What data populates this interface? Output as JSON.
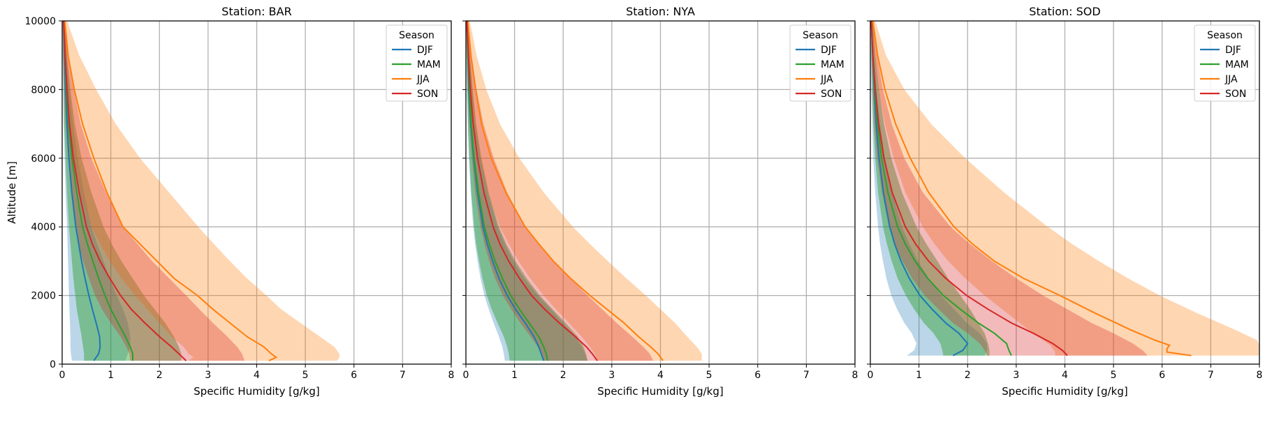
{
  "chart_data": [
    {
      "type": "area",
      "title": "Station: BAR",
      "xlabel": "Specific Humidity [g/kg]",
      "ylabel": "Altitude [m]",
      "xlim": [
        0,
        8
      ],
      "ylim": [
        0,
        10000
      ],
      "xticks": [
        "0",
        "1",
        "2",
        "3",
        "4",
        "5",
        "6",
        "7",
        "8"
      ],
      "yticks": [
        "0",
        "2000",
        "4000",
        "6000",
        "8000",
        "10000"
      ],
      "grid": true,
      "legend": {
        "title": "Season",
        "position": "top-right"
      },
      "series": [
        {
          "name": "DJF",
          "color": "#1f77b4",
          "altitude": [
            100,
            300,
            500,
            800,
            1200,
            1600,
            2000,
            2500,
            3000,
            3500,
            4000,
            5000,
            6000,
            7000,
            8000,
            9000,
            10000
          ],
          "mean": [
            0.65,
            0.75,
            0.78,
            0.77,
            0.7,
            0.62,
            0.55,
            0.47,
            0.4,
            0.34,
            0.28,
            0.2,
            0.14,
            0.1,
            0.07,
            0.05,
            0.03
          ],
          "lower": [
            0.2,
            0.18,
            0.17,
            0.17,
            0.16,
            0.15,
            0.14,
            0.13,
            0.12,
            0.11,
            0.1,
            0.07,
            0.05,
            0.03,
            0.02,
            0.01,
            0.01
          ],
          "upper": [
            1.3,
            1.35,
            1.4,
            1.4,
            1.35,
            1.25,
            1.12,
            0.98,
            0.85,
            0.72,
            0.6,
            0.45,
            0.32,
            0.22,
            0.15,
            0.09,
            0.05
          ]
        },
        {
          "name": "MAM",
          "color": "#2ca02c",
          "altitude": [
            100,
            300,
            500,
            800,
            1200,
            1600,
            2000,
            2500,
            3000,
            3500,
            4000,
            5000,
            6000,
            7000,
            8000,
            9000,
            10000
          ],
          "mean": [
            1.45,
            1.45,
            1.4,
            1.3,
            1.15,
            1.0,
            0.88,
            0.75,
            0.63,
            0.52,
            0.42,
            0.3,
            0.2,
            0.13,
            0.09,
            0.06,
            0.03
          ],
          "lower": [
            0.45,
            0.45,
            0.43,
            0.4,
            0.35,
            0.3,
            0.27,
            0.23,
            0.2,
            0.17,
            0.14,
            0.1,
            0.07,
            0.04,
            0.03,
            0.02,
            0.01
          ],
          "upper": [
            2.45,
            2.45,
            2.4,
            2.3,
            2.12,
            1.9,
            1.68,
            1.45,
            1.22,
            1.02,
            0.85,
            0.6,
            0.4,
            0.26,
            0.17,
            0.1,
            0.05
          ]
        },
        {
          "name": "JJA",
          "color": "#ff7f0e",
          "altitude": [
            100,
            200,
            300,
            500,
            800,
            1200,
            1600,
            2000,
            2500,
            3000,
            3500,
            4000,
            5000,
            6000,
            7000,
            8000,
            9000,
            10000
          ],
          "mean": [
            4.25,
            4.4,
            4.3,
            4.15,
            3.8,
            3.45,
            3.1,
            2.78,
            2.3,
            1.95,
            1.6,
            1.25,
            0.92,
            0.65,
            0.42,
            0.25,
            0.12,
            0.05
          ],
          "lower": [
            2.6,
            2.7,
            2.6,
            2.5,
            2.25,
            2.0,
            1.75,
            1.5,
            1.22,
            0.98,
            0.78,
            0.6,
            0.38,
            0.25,
            0.15,
            0.08,
            0.04,
            0.02
          ],
          "upper": [
            5.65,
            5.7,
            5.7,
            5.6,
            5.3,
            4.9,
            4.5,
            4.2,
            3.8,
            3.45,
            3.12,
            2.8,
            2.2,
            1.6,
            1.1,
            0.7,
            0.35,
            0.1
          ]
        },
        {
          "name": "SON",
          "color": "#d62728",
          "altitude": [
            100,
            300,
            500,
            800,
            1200,
            1600,
            2000,
            2500,
            3000,
            3500,
            4000,
            5000,
            6000,
            7000,
            8000,
            9000,
            10000
          ],
          "mean": [
            2.55,
            2.4,
            2.25,
            2.0,
            1.7,
            1.42,
            1.2,
            0.98,
            0.78,
            0.62,
            0.5,
            0.35,
            0.23,
            0.15,
            0.1,
            0.06,
            0.03
          ],
          "lower": [
            1.4,
            1.38,
            1.32,
            1.2,
            1.0,
            0.82,
            0.68,
            0.55,
            0.43,
            0.34,
            0.27,
            0.18,
            0.12,
            0.07,
            0.04,
            0.02,
            0.01
          ],
          "upper": [
            3.75,
            3.7,
            3.6,
            3.4,
            3.1,
            2.82,
            2.55,
            2.2,
            1.85,
            1.55,
            1.25,
            0.9,
            0.6,
            0.38,
            0.24,
            0.14,
            0.07
          ]
        }
      ]
    },
    {
      "type": "area",
      "title": "Station: NYA",
      "xlabel": "Specific Humidity [g/kg]",
      "ylabel": "",
      "xlim": [
        0,
        8
      ],
      "ylim": [
        0,
        10000
      ],
      "xticks": [
        "0",
        "1",
        "2",
        "3",
        "4",
        "5",
        "6",
        "7",
        "8"
      ],
      "yticks": [
        "",
        "",
        "",
        "",
        "",
        ""
      ],
      "grid": true,
      "legend": {
        "title": "Season",
        "position": "top-right"
      },
      "series": [
        {
          "name": "DJF",
          "color": "#1f77b4",
          "altitude": [
            100,
            300,
            500,
            800,
            1200,
            1600,
            2000,
            2500,
            3000,
            3500,
            4000,
            5000,
            6000,
            7000,
            8000,
            9000,
            10000
          ],
          "mean": [
            1.6,
            1.55,
            1.5,
            1.4,
            1.22,
            1.02,
            0.85,
            0.68,
            0.55,
            0.44,
            0.35,
            0.24,
            0.16,
            0.1,
            0.06,
            0.04,
            0.02
          ],
          "lower": [
            0.8,
            0.78,
            0.75,
            0.68,
            0.57,
            0.47,
            0.38,
            0.3,
            0.24,
            0.19,
            0.15,
            0.1,
            0.06,
            0.04,
            0.02,
            0.01,
            0.01
          ],
          "upper": [
            2.5,
            2.45,
            2.38,
            2.25,
            2.0,
            1.75,
            1.48,
            1.2,
            0.98,
            0.8,
            0.65,
            0.45,
            0.3,
            0.2,
            0.13,
            0.08,
            0.04
          ]
        },
        {
          "name": "MAM",
          "color": "#2ca02c",
          "altitude": [
            100,
            300,
            500,
            800,
            1200,
            1600,
            2000,
            2500,
            3000,
            3500,
            4000,
            5000,
            6000,
            7000,
            8000,
            9000,
            10000
          ],
          "mean": [
            1.68,
            1.65,
            1.6,
            1.5,
            1.3,
            1.1,
            0.92,
            0.75,
            0.6,
            0.48,
            0.38,
            0.26,
            0.17,
            0.11,
            0.07,
            0.04,
            0.02
          ],
          "lower": [
            0.9,
            0.88,
            0.85,
            0.78,
            0.65,
            0.53,
            0.43,
            0.34,
            0.27,
            0.21,
            0.17,
            0.11,
            0.07,
            0.04,
            0.03,
            0.02,
            0.01
          ],
          "upper": [
            2.5,
            2.47,
            2.42,
            2.3,
            2.05,
            1.78,
            1.52,
            1.25,
            1.02,
            0.83,
            0.68,
            0.47,
            0.32,
            0.21,
            0.14,
            0.08,
            0.04
          ]
        },
        {
          "name": "JJA",
          "color": "#ff7f0e",
          "altitude": [
            100,
            300,
            500,
            800,
            1200,
            1600,
            2000,
            2500,
            3000,
            3500,
            4000,
            5000,
            6000,
            7000,
            8000,
            9000,
            10000
          ],
          "mean": [
            4.05,
            3.95,
            3.8,
            3.55,
            3.25,
            2.9,
            2.55,
            2.15,
            1.8,
            1.5,
            1.22,
            0.82,
            0.52,
            0.32,
            0.2,
            0.1,
            0.04
          ],
          "lower": [
            2.7,
            2.65,
            2.55,
            2.38,
            2.12,
            1.85,
            1.6,
            1.32,
            1.08,
            0.88,
            0.7,
            0.45,
            0.28,
            0.17,
            0.1,
            0.05,
            0.02
          ],
          "upper": [
            4.85,
            4.85,
            4.75,
            4.55,
            4.3,
            4.0,
            3.7,
            3.3,
            2.92,
            2.55,
            2.2,
            1.6,
            1.1,
            0.7,
            0.42,
            0.22,
            0.08
          ]
        },
        {
          "name": "SON",
          "color": "#d62728",
          "altitude": [
            100,
            300,
            500,
            800,
            1200,
            1600,
            2000,
            2500,
            3000,
            3500,
            4000,
            5000,
            6000,
            7000,
            8000,
            9000,
            10000
          ],
          "mean": [
            2.7,
            2.6,
            2.48,
            2.25,
            1.92,
            1.62,
            1.35,
            1.1,
            0.88,
            0.7,
            0.56,
            0.37,
            0.24,
            0.15,
            0.09,
            0.05,
            0.02
          ],
          "lower": [
            1.6,
            1.55,
            1.48,
            1.33,
            1.12,
            0.93,
            0.76,
            0.6,
            0.48,
            0.38,
            0.3,
            0.19,
            0.12,
            0.07,
            0.04,
            0.02,
            0.01
          ],
          "upper": [
            3.85,
            3.78,
            3.65,
            3.42,
            3.1,
            2.8,
            2.5,
            2.15,
            1.8,
            1.5,
            1.22,
            0.85,
            0.57,
            0.36,
            0.22,
            0.12,
            0.05
          ]
        }
      ]
    },
    {
      "type": "area",
      "title": "Station: SOD",
      "xlabel": "Specific Humidity [g/kg]",
      "ylabel": "",
      "xlim": [
        0,
        8
      ],
      "ylim": [
        0,
        10000
      ],
      "xticks": [
        "0",
        "1",
        "2",
        "3",
        "4",
        "5",
        "6",
        "7",
        "8"
      ],
      "yticks": [
        "",
        "",
        "",
        "",
        "",
        ""
      ],
      "grid": true,
      "legend": {
        "title": "Season",
        "position": "top-right"
      },
      "series": [
        {
          "name": "DJF",
          "color": "#1f77b4",
          "altitude": [
            250,
            400,
            600,
            900,
            1200,
            1600,
            2000,
            2500,
            3000,
            3500,
            4000,
            5000,
            6000,
            7000,
            8000,
            9000,
            10000
          ],
          "mean": [
            1.7,
            1.9,
            2.0,
            1.82,
            1.55,
            1.27,
            1.02,
            0.8,
            0.63,
            0.5,
            0.4,
            0.27,
            0.18,
            0.12,
            0.08,
            0.05,
            0.02
          ],
          "lower": [
            0.75,
            0.9,
            0.95,
            0.85,
            0.7,
            0.55,
            0.43,
            0.33,
            0.26,
            0.2,
            0.16,
            0.1,
            0.06,
            0.04,
            0.02,
            0.01,
            0.01
          ],
          "upper": [
            2.35,
            2.4,
            2.4,
            2.25,
            1.98,
            1.72,
            1.45,
            1.2,
            0.98,
            0.8,
            0.65,
            0.45,
            0.3,
            0.2,
            0.13,
            0.08,
            0.04
          ]
        },
        {
          "name": "MAM",
          "color": "#2ca02c",
          "altitude": [
            250,
            400,
            600,
            900,
            1200,
            1600,
            2000,
            2500,
            3000,
            3500,
            4000,
            5000,
            6000,
            7000,
            8000,
            9000,
            10000
          ],
          "mean": [
            2.9,
            2.85,
            2.8,
            2.55,
            2.22,
            1.85,
            1.5,
            1.18,
            0.92,
            0.72,
            0.56,
            0.36,
            0.23,
            0.15,
            0.09,
            0.05,
            0.02
          ],
          "lower": [
            1.5,
            1.48,
            1.44,
            1.3,
            1.1,
            0.9,
            0.73,
            0.56,
            0.44,
            0.34,
            0.26,
            0.16,
            0.1,
            0.06,
            0.04,
            0.02,
            0.01
          ],
          "upper": [
            2.45,
            2.45,
            2.42,
            2.35,
            2.22,
            2.05,
            1.85,
            1.6,
            1.38,
            1.15,
            0.95,
            0.65,
            0.43,
            0.28,
            0.18,
            0.1,
            0.05
          ]
        },
        {
          "name": "JJA",
          "color": "#ff7f0e",
          "altitude": [
            250,
            350,
            450,
            550,
            700,
            1000,
            1500,
            2000,
            2500,
            3000,
            3500,
            4000,
            5000,
            6000,
            7000,
            8000,
            9000,
            10000
          ],
          "mean": [
            6.6,
            6.1,
            6.1,
            6.15,
            5.85,
            5.35,
            4.6,
            3.9,
            3.15,
            2.55,
            2.1,
            1.72,
            1.2,
            0.82,
            0.52,
            0.3,
            0.15,
            0.05
          ],
          "lower": [
            3.8,
            3.8,
            3.75,
            3.7,
            3.55,
            3.25,
            2.8,
            2.35,
            1.95,
            1.6,
            1.32,
            1.08,
            0.72,
            0.48,
            0.3,
            0.17,
            0.08,
            0.03
          ],
          "upper": [
            8.0,
            8.0,
            8.0,
            8.0,
            7.95,
            7.5,
            6.7,
            5.95,
            5.3,
            4.7,
            4.15,
            3.65,
            2.75,
            1.95,
            1.25,
            0.7,
            0.32,
            0.1
          ]
        },
        {
          "name": "SON",
          "color": "#d62728",
          "altitude": [
            250,
            400,
            600,
            900,
            1200,
            1600,
            2000,
            2500,
            3000,
            3500,
            4000,
            5000,
            6000,
            7000,
            8000,
            9000,
            10000
          ],
          "mean": [
            4.05,
            3.95,
            3.75,
            3.35,
            2.9,
            2.42,
            1.98,
            1.55,
            1.2,
            0.93,
            0.72,
            0.45,
            0.28,
            0.17,
            0.1,
            0.05,
            0.02
          ],
          "lower": [
            2.4,
            2.35,
            2.25,
            2.0,
            1.7,
            1.4,
            1.12,
            0.86,
            0.66,
            0.5,
            0.38,
            0.24,
            0.14,
            0.08,
            0.05,
            0.03,
            0.01
          ],
          "upper": [
            5.7,
            5.6,
            5.4,
            5.0,
            4.55,
            4.05,
            3.55,
            3.0,
            2.5,
            2.05,
            1.65,
            1.08,
            0.7,
            0.44,
            0.26,
            0.14,
            0.06
          ]
        }
      ]
    }
  ]
}
